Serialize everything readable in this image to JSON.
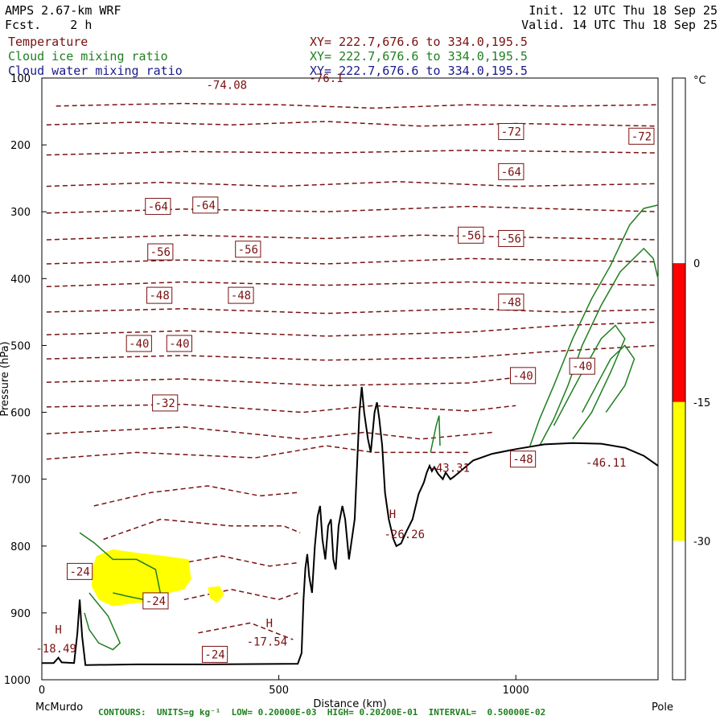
{
  "header": {
    "model": "AMPS 2.67-km WRF",
    "fcst": "Fcst.    2 h",
    "init": "Init. 12 UTC Thu 18 Sep 25",
    "valid": "Valid. 14 UTC Thu 18 Sep 25"
  },
  "fields": [
    {
      "name": "Temperature",
      "xy": "XY= 222.7,676.6 to 334.0,195.5",
      "color": "#7a1010"
    },
    {
      "name": "Cloud ice mixing ratio",
      "xy": "XY= 222.7,676.6 to 334.0,195.5",
      "color": "#1f7f1f"
    },
    {
      "name": "Cloud water mixing ratio",
      "xy": "XY= 222.7,676.6 to 334.0,195.5",
      "color": "#1a1a8a"
    }
  ],
  "footer": "CONTOURS:  UNITS=g kg⁻¹  LOW= 0.20000E-03  HIGH= 0.20200E-01  INTERVAL=  0.50000E-02",
  "chart_data": {
    "type": "cross-section",
    "ylabel": "Pressure (hPa)",
    "xlabel": "Distance (km)",
    "x_left_label": "McMurdo",
    "x_right_label": "Pole",
    "xlim": [
      0,
      1300
    ],
    "ylim": [
      1000,
      100
    ],
    "xticks": [
      0,
      500,
      1000
    ],
    "yticks": [
      100,
      200,
      300,
      400,
      500,
      600,
      700,
      800,
      900,
      1000
    ],
    "colorbar": {
      "unit": "°C",
      "ticks": [
        0,
        -15,
        -30
      ],
      "bands": [
        {
          "range": [
            0,
            20
          ],
          "color": "#ffffff"
        },
        {
          "range": [
            -15,
            0
          ],
          "color": "#ff0000"
        },
        {
          "range": [
            -30,
            -15
          ],
          "color": "#ffff00"
        },
        {
          "range": [
            -45,
            -30
          ],
          "color": "#ffffff"
        }
      ]
    },
    "temperature_labels": [
      {
        "text": "-74.08",
        "x": 390,
        "p": 110
      },
      {
        "text": "-76.1",
        "x": 600,
        "p": 100
      },
      {
        "text": "-72",
        "x": 990,
        "p": 180
      },
      {
        "text": "-72",
        "x": 1265,
        "p": 187
      },
      {
        "text": "-64",
        "x": 245,
        "p": 292
      },
      {
        "text": "-64",
        "x": 345,
        "p": 290
      },
      {
        "text": "-64",
        "x": 990,
        "p": 240
      },
      {
        "text": "-56",
        "x": 250,
        "p": 360
      },
      {
        "text": "-56",
        "x": 435,
        "p": 356
      },
      {
        "text": "-56",
        "x": 905,
        "p": 335
      },
      {
        "text": "-56",
        "x": 990,
        "p": 340
      },
      {
        "text": "-48",
        "x": 248,
        "p": 425
      },
      {
        "text": "-48",
        "x": 420,
        "p": 425
      },
      {
        "text": "-48",
        "x": 990,
        "p": 435
      },
      {
        "text": "-40",
        "x": 205,
        "p": 497
      },
      {
        "text": "-40",
        "x": 290,
        "p": 497
      },
      {
        "text": "-40",
        "x": 1140,
        "p": 531
      },
      {
        "text": "-40",
        "x": 1015,
        "p": 545
      },
      {
        "text": "-32",
        "x": 260,
        "p": 586
      },
      {
        "text": "-48",
        "x": 1015,
        "p": 670
      },
      {
        "text": "-46.11",
        "x": 1190,
        "p": 675
      },
      {
        "text": "-43.31",
        "x": 860,
        "p": 683
      },
      {
        "text": "-26.26",
        "x": 765,
        "p": 782
      },
      {
        "text": "-24",
        "x": 80,
        "p": 838
      },
      {
        "text": "-24",
        "x": 240,
        "p": 882
      },
      {
        "text": "-24",
        "x": 365,
        "p": 962
      },
      {
        "text": "-17.54",
        "x": 475,
        "p": 943
      },
      {
        "text": "-18.49",
        "x": 30,
        "p": 953
      }
    ],
    "high_labels": [
      {
        "text": "H",
        "x": 35,
        "p": 925
      },
      {
        "text": "H",
        "x": 480,
        "p": 915
      },
      {
        "text": "H",
        "x": 740,
        "p": 752
      }
    ]
  }
}
